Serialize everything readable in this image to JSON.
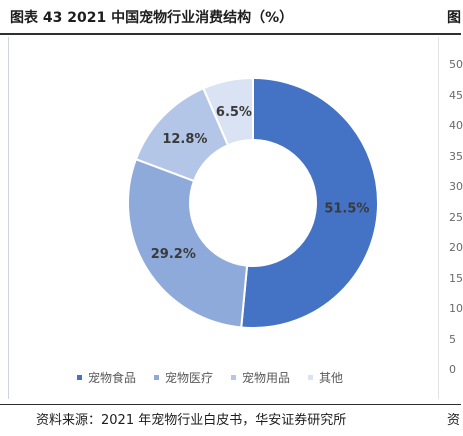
{
  "header": {
    "title": "图表 43 2021 中国宠物行业消费结构（%）",
    "next_title_fragment": "图"
  },
  "chart_data": {
    "type": "pie",
    "donut": true,
    "categories": [
      "宠物食品",
      "宠物医疗",
      "宠物用品",
      "其他"
    ],
    "values": [
      51.5,
      29.2,
      12.8,
      6.5
    ],
    "value_labels": [
      "51.5%",
      "29.2%",
      "12.8%",
      "6.5%"
    ],
    "colors": [
      "#4472c4",
      "#8eaadb",
      "#b4c6e7",
      "#dae3f3"
    ],
    "legend_position": "bottom"
  },
  "adjacent_chart_ticks": [
    "50",
    "45",
    "40",
    "35",
    "30",
    "25",
    "20",
    "15",
    "10",
    "5",
    "0"
  ],
  "footer": {
    "source": "资料来源：2021 年宠物行业白皮书，华安证券研究所",
    "next_source_fragment": "资"
  }
}
